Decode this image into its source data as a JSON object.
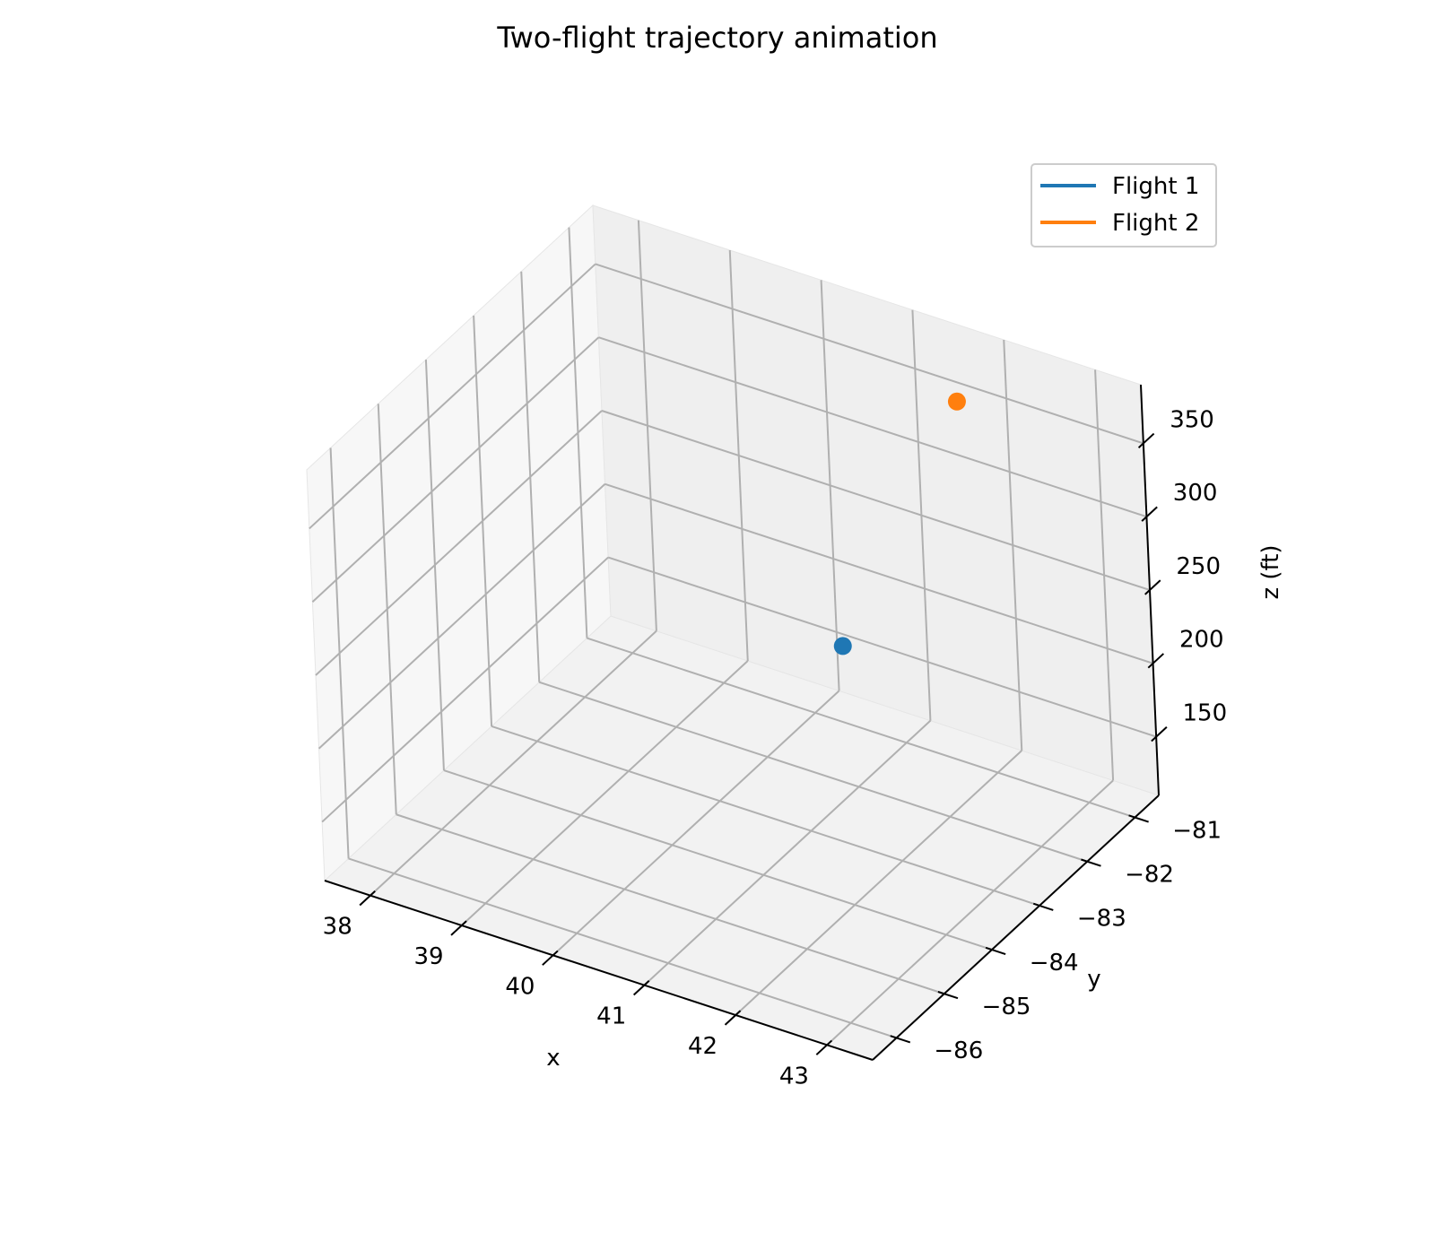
{
  "chart_data": {
    "type": "scatter",
    "projection": "3d",
    "title": "Two-flight trajectory animation",
    "xlabel": "x",
    "ylabel": "y",
    "zlabel": "z (ft)",
    "xlim": [
      37.5,
      43.5
    ],
    "ylim": [
      -86.5,
      -80.5
    ],
    "zlim": [
      110,
      390
    ],
    "x_ticks": [
      38,
      39,
      40,
      41,
      42,
      43
    ],
    "x_tick_labels": [
      "38",
      "39",
      "40",
      "41",
      "42",
      "43"
    ],
    "y_ticks": [
      -86,
      -85,
      -84,
      -83,
      -82,
      -81
    ],
    "y_tick_labels": [
      "−86",
      "−85",
      "−84",
      "−83",
      "−82",
      "−81"
    ],
    "z_ticks": [
      150,
      200,
      250,
      300,
      350
    ],
    "z_tick_labels": [
      "150",
      "200",
      "250",
      "300",
      "350"
    ],
    "grid": true,
    "legend_position": "top-right",
    "series": [
      {
        "name": "Flight 1",
        "color": "#1f77b4",
        "points": [
          {
            "x": 41.0,
            "y": -82.2,
            "z": 212
          }
        ]
      },
      {
        "name": "Flight 2",
        "color": "#ff7f0e",
        "points": [
          {
            "x": 42.0,
            "y": -81.5,
            "z": 378
          }
        ]
      }
    ]
  }
}
